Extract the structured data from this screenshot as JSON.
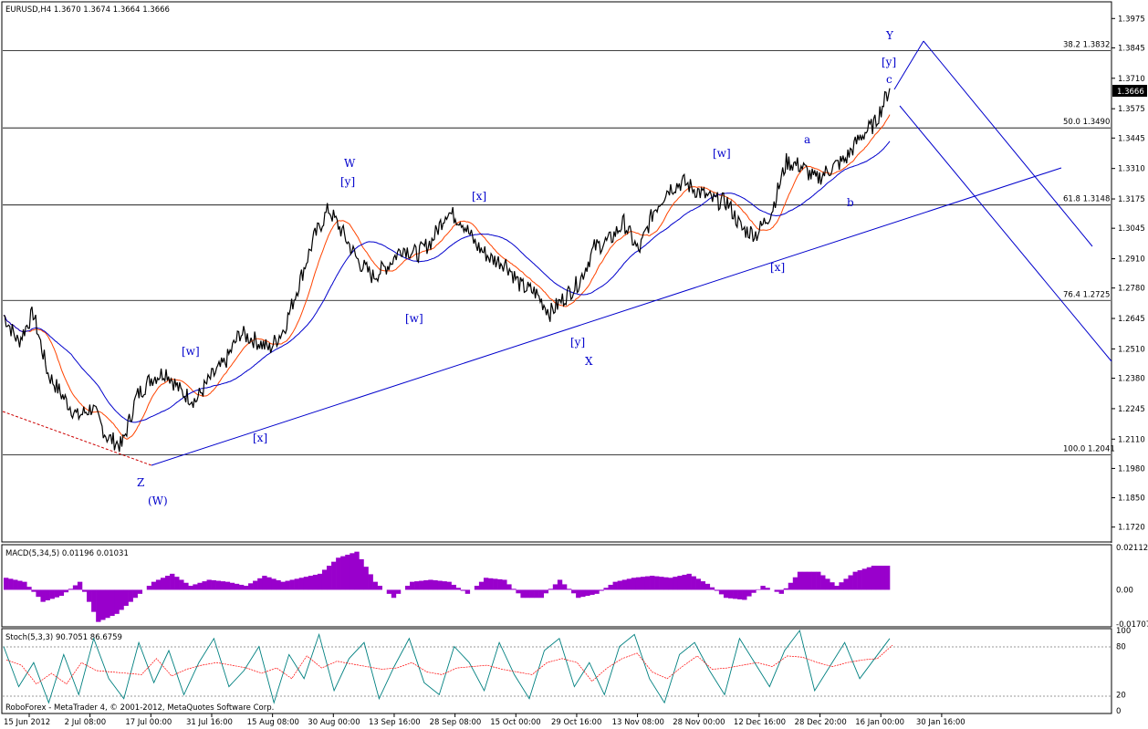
{
  "chart_data": [
    {
      "type": "line",
      "title": "EURUSD,H4  1.3670 1.3674 1.3664 1.3666",
      "symbol": "EURUSD",
      "timeframe": "H4",
      "ohlc": {
        "open": 1.367,
        "high": 1.3674,
        "low": 1.3664,
        "close": 1.3666
      },
      "current_price_label": "1.3666",
      "ylim": [
        1.1654,
        1.4049
      ],
      "y_ticks": [
        "1.3975",
        "1.3845",
        "1.3710",
        "1.3575",
        "1.3445",
        "1.3310",
        "1.3175",
        "1.3045",
        "1.2910",
        "1.2780",
        "1.2645",
        "1.2510",
        "1.2380",
        "1.2245",
        "1.2110",
        "1.1980",
        "1.1850",
        "1.1720"
      ],
      "x_ticks": [
        "15 Jun 2012",
        "2 Jul 08:00",
        "17 Jul 00:00",
        "31 Jul 16:00",
        "15 Aug 08:00",
        "30 Aug 00:00",
        "13 Sep 16:00",
        "28 Sep 08:00",
        "15 Oct 00:00",
        "29 Oct 16:00",
        "13 Nov 08:00",
        "28 Nov 00:00",
        "12 Dec 16:00",
        "28 Dec 20:00",
        "16 Jan 00:00",
        "30 Jan 16:00"
      ],
      "grid": false,
      "series": [
        {
          "name": "",
          "color": "#000000",
          "x": [
            "15 Jun",
            "22 Jun",
            "29 Jun",
            "2 Jul",
            "6 Jul",
            "12 Jul",
            "17 Jul",
            "20 Jul",
            "24 Jul",
            "27 Jul",
            "31 Jul",
            "3 Aug",
            "8 Aug",
            "13 Aug",
            "15 Aug",
            "20 Aug",
            "24 Aug",
            "28 Aug",
            "30 Aug",
            "4 Sep",
            "7 Sep",
            "11 Sep",
            "13 Sep",
            "17 Sep",
            "20 Sep",
            "25 Sep",
            "28 Sep",
            "3 Oct",
            "8 Oct",
            "12 Oct",
            "15 Oct",
            "18 Oct",
            "22 Oct",
            "26 Oct",
            "29 Oct",
            "2 Nov",
            "6 Nov",
            "13 Nov",
            "16 Nov",
            "20 Nov",
            "23 Nov",
            "28 Nov",
            "3 Dec",
            "7 Dec",
            "12 Dec",
            "14 Dec",
            "18 Dec",
            "21 Dec",
            "24 Dec",
            "28 Dec",
            "2 Jan",
            "4 Jan",
            "8 Jan",
            "11 Jan",
            "14 Jan",
            "16 Jan",
            "18 Jan",
            "22 Jan",
            "25 Jan",
            "28 Jan",
            "30 Jan"
          ],
          "y": [
            1.266,
            1.254,
            1.267,
            1.24,
            1.23,
            1.221,
            1.225,
            1.212,
            1.208,
            1.23,
            1.238,
            1.241,
            1.232,
            1.228,
            1.238,
            1.245,
            1.258,
            1.255,
            1.251,
            1.26,
            1.28,
            1.3,
            1.313,
            1.302,
            1.29,
            1.283,
            1.288,
            1.296,
            1.293,
            1.299,
            1.312,
            1.308,
            1.297,
            1.291,
            1.289,
            1.279,
            1.276,
            1.267,
            1.274,
            1.281,
            1.296,
            1.299,
            1.307,
            1.294,
            1.312,
            1.322,
            1.325,
            1.321,
            1.317,
            1.316,
            1.304,
            1.302,
            1.312,
            1.334,
            1.332,
            1.326,
            1.331,
            1.335,
            1.345,
            1.351,
            1.3666
          ]
        },
        {
          "name": "",
          "color": "#ff4400"
        },
        {
          "name": "",
          "color": "#0000cc"
        }
      ],
      "fib_levels": [
        {
          "label": "38.2  1.3832",
          "value": 1.3832
        },
        {
          "label": "50.0  1.3490",
          "value": 1.349
        },
        {
          "label": "61.8  1.3148",
          "value": 1.3148
        },
        {
          "label": "76.4  1.2725",
          "value": 1.2725
        },
        {
          "label": "100.0  1.2041",
          "value": 1.2041
        }
      ],
      "wave_labels": [
        "Y",
        "[y]",
        "c",
        "W",
        "[y]",
        "[x]",
        "[w]",
        "a",
        "b",
        "[x]",
        "[w]",
        "[w]",
        "[y]",
        "X",
        "[x]",
        "Z",
        "(W)"
      ]
    },
    {
      "type": "bar",
      "title": "MACD(5,34,5) 0.01196 0.01031",
      "color": "#9900cc",
      "ylim": [
        -0.01707,
        0.02112
      ],
      "y_ticks": [
        "0.02112",
        "0.00",
        "-0.01707"
      ],
      "values": [
        0.006,
        0.004,
        -0.006,
        -0.003,
        0.004,
        -0.016,
        -0.012,
        -0.004,
        0.004,
        0.008,
        0.002,
        0.005,
        0.004,
        0.002,
        0.007,
        0.004,
        0.006,
        0.008,
        0.016,
        0.019,
        0.004,
        -0.004,
        0.004,
        0.005,
        0.004,
        -0.002,
        0.006,
        0.005,
        -0.004,
        -0.004,
        0.005,
        -0.004,
        -0.002,
        0.004,
        0.006,
        0.007,
        0.006,
        0.008,
        0.003,
        -0.004,
        -0.005,
        0.002,
        -0.002,
        0.009,
        0.009,
        0.002,
        0.009,
        0.012
      ]
    },
    {
      "type": "line",
      "title": "Stoch(5,3,3) 90.7051 86.6759",
      "ylim": [
        0,
        100
      ],
      "y_ticks": [
        "100",
        "80",
        "20",
        "0"
      ],
      "values": [
        80,
        30,
        60,
        10,
        70,
        20,
        90,
        40,
        15,
        85,
        35,
        75,
        20,
        60,
        90,
        30,
        50,
        80,
        10,
        70,
        40,
        95,
        25,
        65,
        85,
        15,
        55,
        90,
        35,
        20,
        80,
        60,
        25,
        85,
        45,
        15,
        75,
        90,
        30,
        60,
        20,
        80,
        95,
        40,
        10,
        70,
        85,
        50,
        20,
        90,
        60,
        30,
        75,
        100,
        25,
        55,
        85,
        40,
        65,
        90
      ]
    },
    {
      "type": "bar",
      "title": "",
      "footer": "RoboForex - MetaTrader 4, © 2001-2012, MetaQuotes Software Corp."
    }
  ]
}
